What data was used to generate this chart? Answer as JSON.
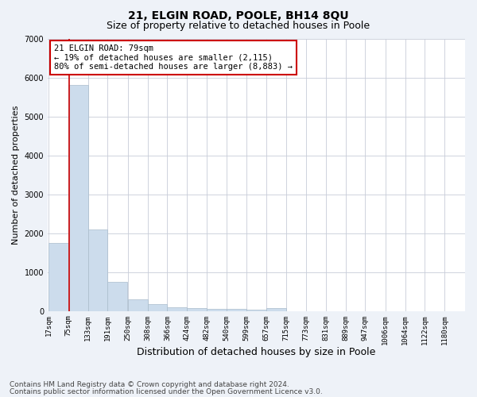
{
  "title": "21, ELGIN ROAD, POOLE, BH14 8QU",
  "subtitle": "Size of property relative to detached houses in Poole",
  "xlabel": "Distribution of detached houses by size in Poole",
  "ylabel": "Number of detached properties",
  "footnote1": "Contains HM Land Registry data © Crown copyright and database right 2024.",
  "footnote2": "Contains public sector information licensed under the Open Government Licence v3.0.",
  "annotation_line1": "21 ELGIN ROAD: 79sqm",
  "annotation_line2": "← 19% of detached houses are smaller (2,115)",
  "annotation_line3": "80% of semi-detached houses are larger (8,883) →",
  "property_size": 79,
  "bin_labels": [
    "17sqm",
    "75sqm",
    "133sqm",
    "191sqm",
    "250sqm",
    "308sqm",
    "366sqm",
    "424sqm",
    "482sqm",
    "540sqm",
    "599sqm",
    "657sqm",
    "715sqm",
    "773sqm",
    "831sqm",
    "889sqm",
    "947sqm",
    "1006sqm",
    "1064sqm",
    "1122sqm",
    "1180sqm"
  ],
  "bin_edges": [
    17,
    75,
    133,
    191,
    250,
    308,
    366,
    424,
    482,
    540,
    599,
    657,
    715,
    773,
    831,
    889,
    947,
    1006,
    1064,
    1122,
    1180
  ],
  "bar_heights": [
    1750,
    5820,
    2100,
    750,
    300,
    175,
    100,
    70,
    50,
    50,
    40,
    75,
    0,
    0,
    0,
    0,
    0,
    0,
    0,
    0
  ],
  "bar_color": "#ccdcec",
  "bar_edge_color": "#aabccc",
  "vline_color": "#cc0000",
  "vline_x": 79,
  "ylim": [
    0,
    7000
  ],
  "background_color": "#eef2f8",
  "plot_bg_color": "#ffffff",
  "grid_color": "#c8ccd8",
  "title_fontsize": 10,
  "subtitle_fontsize": 9,
  "annotation_fontsize": 7.5,
  "ylabel_fontsize": 8,
  "xlabel_fontsize": 9,
  "footnote_fontsize": 6.5,
  "tick_fontsize": 6.5
}
